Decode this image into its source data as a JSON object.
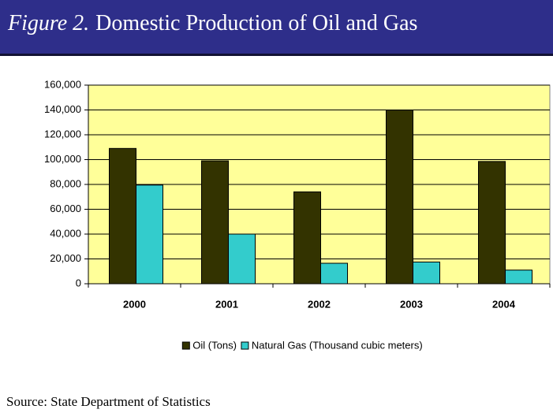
{
  "chart_data": {
    "type": "bar",
    "figure_label": "Figure 2.",
    "title": "Domestic Production of Oil and Gas",
    "categories": [
      "2000",
      "2001",
      "2002",
      "2003",
      "2004"
    ],
    "series": [
      {
        "name": "Oil (Tons)",
        "color": "#333300",
        "values": [
          109000,
          99000,
          74000,
          140000,
          98500
        ]
      },
      {
        "name": "Natural Gas (Thousand cubic meters)",
        "color": "#33cccc",
        "values": [
          79500,
          40000,
          16500,
          17500,
          11000
        ]
      }
    ],
    "ylim": [
      0,
      160000
    ],
    "yticks": [
      0,
      {
        "value": 20000,
        "label": "20,000"
      },
      {
        "value": 40000,
        "label": "40,000"
      },
      {
        "value": 60000,
        "label": "60,000"
      },
      {
        "value": 80000,
        "label": "80,000"
      },
      {
        "value": 100000,
        "label": "100,000"
      },
      {
        "value": 120000,
        "label": "120,000"
      },
      {
        "value": 140000,
        "label": "140,000"
      },
      {
        "value": 160000,
        "label": "160,000"
      }
    ],
    "grid": true,
    "plot_color": "#ffff99",
    "legend": "bottom",
    "source": "Source: State Department of Statistics"
  }
}
